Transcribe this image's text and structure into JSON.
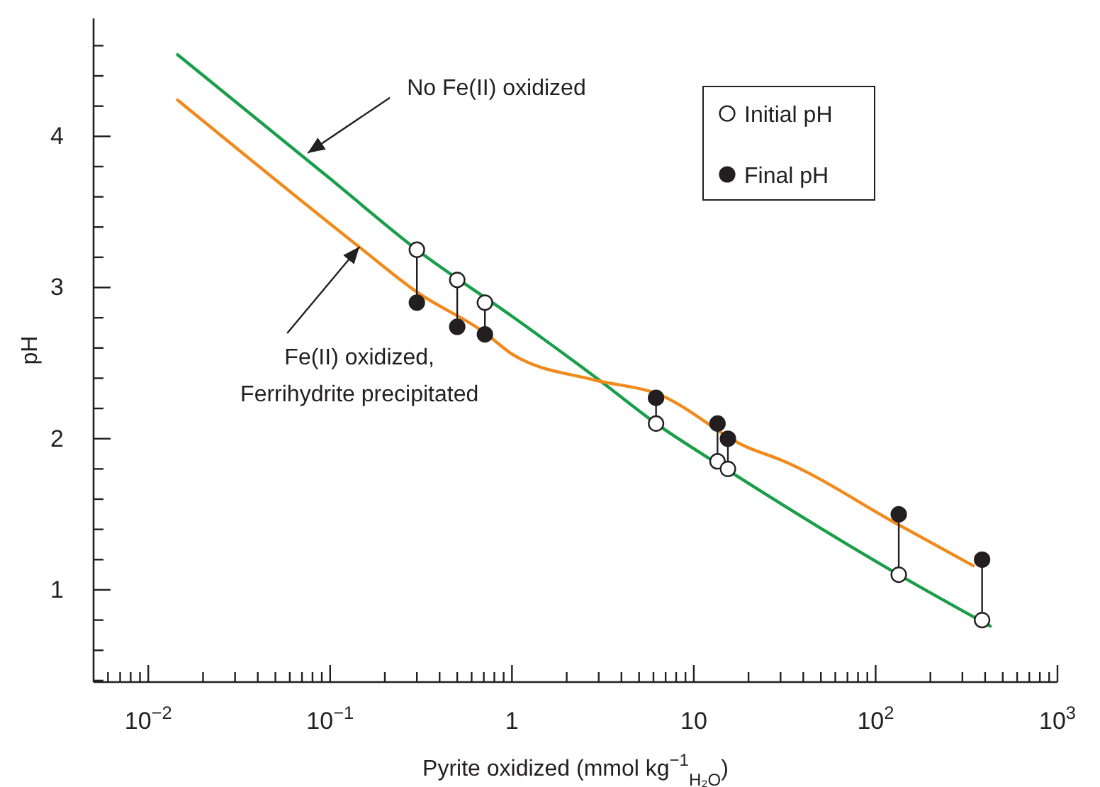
{
  "chart_data": {
    "type": "line",
    "xlabel": "Pyrite oxidized (mmol kg$^{−1}$$_{H₂O}$)",
    "ylabel": "pH",
    "log": "x",
    "xlim": [
      0.005,
      1000
    ],
    "ylim": [
      0.39,
      4.78
    ],
    "xticks": [
      {
        "value": 0.006,
        "label": null
      },
      {
        "value": 0.007,
        "label": null
      },
      {
        "value": 0.008,
        "label": null
      },
      {
        "value": 0.009,
        "label": null
      },
      {
        "value": 0.01,
        "label": "10$^{−2}$"
      },
      {
        "value": 0.02,
        "label": null
      },
      {
        "value": 0.03,
        "label": null
      },
      {
        "value": 0.04,
        "label": null
      },
      {
        "value": 0.05,
        "label": null
      },
      {
        "value": 0.06,
        "label": null
      },
      {
        "value": 0.07,
        "label": null
      },
      {
        "value": 0.08,
        "label": null
      },
      {
        "value": 0.09,
        "label": null
      },
      {
        "value": 0.1,
        "label": "10$^{−1}$"
      },
      {
        "value": 0.2,
        "label": null
      },
      {
        "value": 0.3,
        "label": null
      },
      {
        "value": 0.4,
        "label": null
      },
      {
        "value": 0.5,
        "label": null
      },
      {
        "value": 0.6,
        "label": null
      },
      {
        "value": 0.7,
        "label": null
      },
      {
        "value": 0.8,
        "label": null
      },
      {
        "value": 0.9,
        "label": null
      },
      1,
      {
        "value": 2,
        "label": null
      },
      {
        "value": 3,
        "label": null
      },
      {
        "value": 4,
        "label": null
      },
      {
        "value": 5,
        "label": null
      },
      {
        "value": 6,
        "label": null
      },
      {
        "value": 7,
        "label": null
      },
      {
        "value": 8,
        "label": null
      },
      {
        "value": 9,
        "label": null
      },
      10,
      {
        "value": 20,
        "label": null
      },
      {
        "value": 30,
        "label": null
      },
      {
        "value": 40,
        "label": null
      },
      {
        "value": 50,
        "label": null
      },
      {
        "value": 60,
        "label": null
      },
      {
        "value": 70,
        "label": null
      },
      {
        "value": 80,
        "label": null
      },
      {
        "value": 90,
        "label": null
      },
      {
        "value": 100,
        "label": "10$^{2}$"
      },
      {
        "value": 200,
        "label": null
      },
      {
        "value": 300,
        "label": null
      },
      {
        "value": 400,
        "label": null
      },
      {
        "value": 500,
        "label": null
      },
      {
        "value": 600,
        "label": null
      },
      {
        "value": 700,
        "label": null
      },
      {
        "value": 800,
        "label": null
      },
      {
        "value": 900,
        "label": null
      },
      {
        "value": 1000,
        "label": "10$^{3}$"
      }
    ],
    "yticks": [
      {
        "value": 0.4,
        "label": null
      },
      {
        "value": 0.6,
        "label": null
      },
      {
        "value": 0.8,
        "label": null
      },
      1,
      {
        "value": 1.2,
        "label": null
      },
      {
        "value": 1.4,
        "label": null
      },
      {
        "value": 1.6,
        "label": null
      },
      {
        "value": 1.8,
        "label": null
      },
      2,
      {
        "value": 2.2,
        "label": null
      },
      {
        "value": 2.4,
        "label": null
      },
      {
        "value": 2.6,
        "label": null
      },
      {
        "value": 2.8,
        "label": null
      },
      3,
      {
        "value": 3.2,
        "label": null
      },
      {
        "value": 3.4,
        "label": null
      },
      {
        "value": 3.6,
        "label": null
      },
      {
        "value": 3.8,
        "label": null
      },
      4,
      {
        "value": 4.2,
        "label": null
      },
      {
        "value": 4.4,
        "label": null
      },
      {
        "value": 4.6,
        "label": null
      }
    ],
    "grid": false,
    "legend": "top right",
    "series": [
      {
        "type": "line",
        "marker": "none",
        "color": "#1a9e4a",
        "x": [
          0.0145,
          0.1,
          0.3,
          1,
          3,
          6.2,
          15,
          134,
          427
        ],
        "values": [
          4.54,
          3.72,
          3.25,
          2.81,
          2.39,
          2.1,
          1.8,
          1.1,
          0.76
        ]
      },
      {
        "type": "line",
        "marker": "none",
        "color": "#f08a1c",
        "x": [
          0.0145,
          0.144,
          0.3,
          0.71,
          1,
          2.8,
          6.2,
          20,
          30,
          134,
          344
        ],
        "values": [
          4.24,
          3.27,
          2.97,
          2.7,
          2.56,
          2.39,
          2.3,
          1.94,
          1.86,
          1.43,
          1.16
        ]
      },
      {
        "type": "scatter",
        "marker": "circle",
        "name": "Initial pH",
        "color": "#ffffff",
        "x": [
          0.3,
          0.5,
          0.71,
          6.2,
          13.5,
          15.4,
          134,
          385
        ],
        "values": [
          3.25,
          3.05,
          2.9,
          2.1,
          1.85,
          1.8,
          1.1,
          0.8
        ]
      },
      {
        "type": "scatter",
        "marker": "circle",
        "name": "Final pH",
        "color": "#231f20",
        "x": [
          0.3,
          0.5,
          0.71,
          6.2,
          13.5,
          15.4,
          134,
          385
        ],
        "values": [
          2.9,
          2.74,
          2.69,
          2.27,
          2.1,
          2.0,
          1.5,
          1.2
        ]
      }
    ],
    "annotations": [
      {
        "text": "No Fe(II) oxidized",
        "x": 0.0753,
        "y": 3.89
      },
      {
        "text": "Fe(II) oxidized,\nFerrihydrite precipitated",
        "x": 0.145,
        "y": 3.27
      }
    ]
  }
}
